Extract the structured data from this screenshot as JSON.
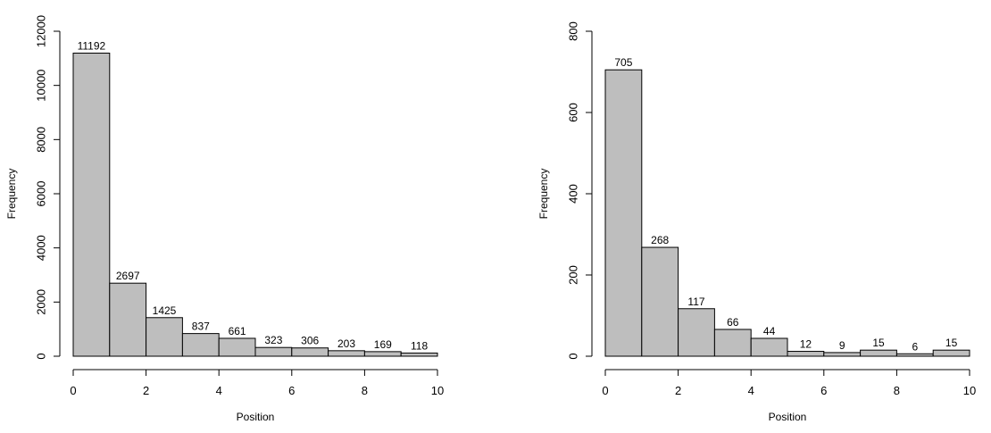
{
  "chart_data": [
    {
      "type": "bar",
      "subtype": "histogram",
      "title": "",
      "xlabel": "Position",
      "ylabel": "Frequency",
      "bin_edges": [
        0,
        1,
        2,
        3,
        4,
        5,
        6,
        7,
        8,
        9,
        10
      ],
      "values": [
        11192,
        2697,
        1425,
        837,
        661,
        323,
        306,
        203,
        169,
        118
      ],
      "data_labels": [
        "11192",
        "2697",
        "1425",
        "837",
        "661",
        "323",
        "306",
        "203",
        "169",
        "118"
      ],
      "xlim": [
        0,
        10
      ],
      "ylim": [
        0,
        12000
      ],
      "x_ticks": [
        0,
        2,
        4,
        6,
        8,
        10
      ],
      "x_tick_labels": [
        "0",
        "2",
        "4",
        "6",
        "8",
        "10"
      ],
      "y_ticks": [
        0,
        2000,
        4000,
        6000,
        8000,
        10000,
        12000
      ],
      "y_tick_labels": [
        "0",
        "2000",
        "4000",
        "6000",
        "8000",
        "10000",
        "12000"
      ],
      "grid": false,
      "bar_color": "#bebebe",
      "edge_color": "#000000"
    },
    {
      "type": "bar",
      "subtype": "histogram",
      "title": "",
      "xlabel": "Position",
      "ylabel": "Frequency",
      "bin_edges": [
        0,
        1,
        2,
        3,
        4,
        5,
        6,
        7,
        8,
        9,
        10
      ],
      "values": [
        705,
        268,
        117,
        66,
        44,
        12,
        9,
        15,
        6,
        15
      ],
      "data_labels": [
        "705",
        "268",
        "117",
        "66",
        "44",
        "12",
        "9",
        "15",
        "6",
        "15"
      ],
      "xlim": [
        0,
        10
      ],
      "ylim": [
        0,
        800
      ],
      "x_ticks": [
        0,
        2,
        4,
        6,
        8,
        10
      ],
      "x_tick_labels": [
        "0",
        "2",
        "4",
        "6",
        "8",
        "10"
      ],
      "y_ticks": [
        0,
        200,
        400,
        600,
        800
      ],
      "y_tick_labels": [
        "0",
        "200",
        "400",
        "600",
        "800"
      ],
      "grid": false,
      "bar_color": "#bebebe",
      "edge_color": "#000000"
    }
  ]
}
